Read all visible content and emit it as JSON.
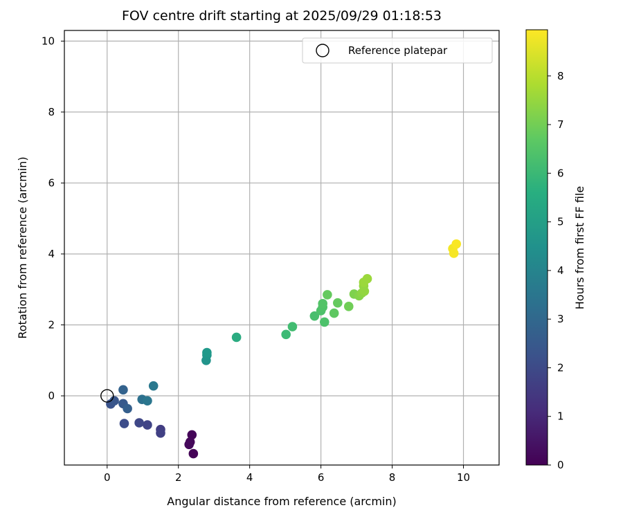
{
  "chart_data": {
    "type": "scatter",
    "title": "FOV centre drift starting at 2025/09/29 01:18:53",
    "xlabel": "Angular distance from reference (arcmin)",
    "ylabel": "Rotation from reference (arcmin)",
    "xlim": [
      -1.2,
      11.0
    ],
    "ylim": [
      -1.95,
      10.3
    ],
    "xticks": [
      0,
      2,
      4,
      6,
      8,
      10
    ],
    "yticks": [
      0,
      2,
      4,
      6,
      8,
      10
    ],
    "grid": true,
    "legend": {
      "location": "upper right",
      "entries": [
        "Reference platepar"
      ]
    },
    "reference_point": {
      "name": "Reference platepar",
      "x": 0,
      "y": 0
    },
    "colorbar": {
      "label": "Hours from first FF file",
      "colormap": "viridis",
      "min": 0,
      "max": 8.95,
      "ticks": [
        0,
        1,
        2,
        3,
        4,
        5,
        6,
        7,
        8
      ]
    },
    "series": [
      {
        "points": [
          {
            "x": 2.38,
            "y": -1.1,
            "c": 0.1
          },
          {
            "x": 2.42,
            "y": -1.63,
            "c": 0.05
          },
          {
            "x": 2.33,
            "y": -1.3,
            "c": 0.15
          },
          {
            "x": 2.3,
            "y": -1.37,
            "c": 0.2
          },
          {
            "x": 1.5,
            "y": -0.95,
            "c": 1.6
          },
          {
            "x": 1.5,
            "y": -1.05,
            "c": 1.7
          },
          {
            "x": 1.13,
            "y": -0.82,
            "c": 1.8
          },
          {
            "x": 0.9,
            "y": -0.76,
            "c": 1.9
          },
          {
            "x": 0.48,
            "y": -0.78,
            "c": 2.1
          },
          {
            "x": 0.1,
            "y": -0.23,
            "c": 2.3
          },
          {
            "x": 0.2,
            "y": -0.14,
            "c": 2.4
          },
          {
            "x": 0.45,
            "y": -0.22,
            "c": 2.5
          },
          {
            "x": 0.57,
            "y": -0.36,
            "c": 2.7
          },
          {
            "x": 0.45,
            "y": 0.17,
            "c": 2.8
          },
          {
            "x": 0.98,
            "y": -0.1,
            "c": 3.3
          },
          {
            "x": 1.13,
            "y": -0.14,
            "c": 3.5
          },
          {
            "x": 1.3,
            "y": 0.28,
            "c": 3.6
          },
          {
            "x": 2.78,
            "y": 1.0,
            "c": 4.6
          },
          {
            "x": 2.8,
            "y": 1.15,
            "c": 4.7
          },
          {
            "x": 2.8,
            "y": 1.22,
            "c": 4.8
          },
          {
            "x": 3.63,
            "y": 1.65,
            "c": 5.5
          },
          {
            "x": 5.02,
            "y": 1.73,
            "c": 6.1
          },
          {
            "x": 5.2,
            "y": 1.95,
            "c": 6.2
          },
          {
            "x": 5.82,
            "y": 2.25,
            "c": 6.3
          },
          {
            "x": 6.0,
            "y": 2.4,
            "c": 6.4
          },
          {
            "x": 6.05,
            "y": 2.5,
            "c": 6.45
          },
          {
            "x": 6.05,
            "y": 2.6,
            "c": 6.5
          },
          {
            "x": 6.1,
            "y": 2.08,
            "c": 6.4
          },
          {
            "x": 6.18,
            "y": 2.85,
            "c": 6.8
          },
          {
            "x": 6.37,
            "y": 2.33,
            "c": 6.7
          },
          {
            "x": 6.47,
            "y": 2.62,
            "c": 6.8
          },
          {
            "x": 6.78,
            "y": 2.52,
            "c": 7.0
          },
          {
            "x": 6.93,
            "y": 2.87,
            "c": 7.2
          },
          {
            "x": 7.07,
            "y": 2.82,
            "c": 7.3
          },
          {
            "x": 7.15,
            "y": 2.9,
            "c": 7.4
          },
          {
            "x": 7.22,
            "y": 2.95,
            "c": 7.5
          },
          {
            "x": 7.2,
            "y": 3.1,
            "c": 7.5
          },
          {
            "x": 7.2,
            "y": 3.2,
            "c": 7.6
          },
          {
            "x": 7.3,
            "y": 3.3,
            "c": 7.6
          },
          {
            "x": 9.7,
            "y": 4.15,
            "c": 8.8
          },
          {
            "x": 9.73,
            "y": 4.02,
            "c": 8.85
          },
          {
            "x": 9.8,
            "y": 4.28,
            "c": 8.9
          }
        ]
      }
    ]
  }
}
